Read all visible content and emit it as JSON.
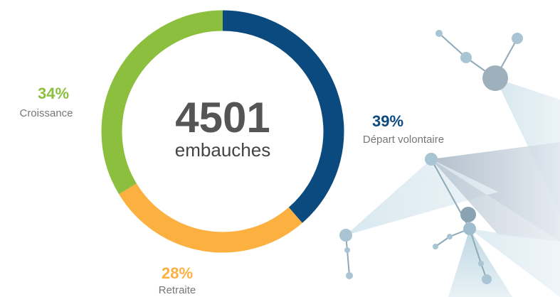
{
  "chart_data": {
    "type": "donut",
    "center_value": 4501,
    "center_label": "embauches",
    "categories": [
      "Départ volontaire",
      "Retraite",
      "Croissance"
    ],
    "values": [
      39,
      28,
      34
    ],
    "value_labels": [
      "39%",
      "28%",
      "34%"
    ],
    "colors": [
      "#0b4a7f",
      "#fbb040",
      "#8dbf3f"
    ]
  }
}
